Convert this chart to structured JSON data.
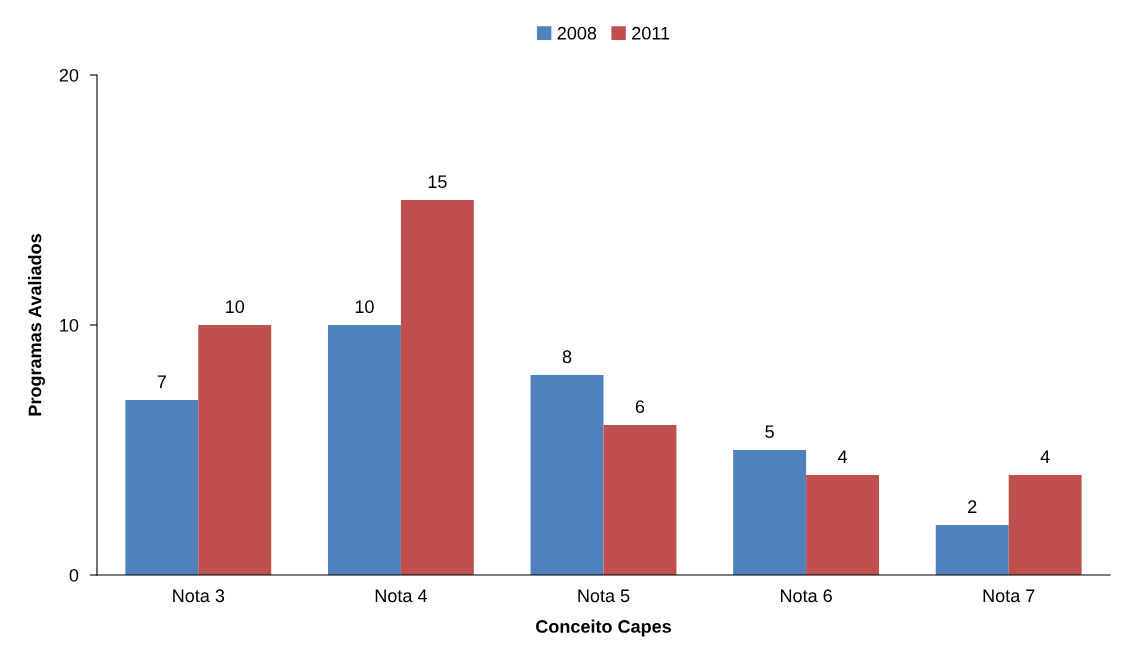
{
  "chart_data": {
    "type": "bar",
    "xlabel": "Conceito Capes",
    "ylabel": "Programas Avaliados",
    "categories": [
      "Nota 3",
      "Nota 4",
      "Nota 5",
      "Nota 6",
      "Nota 7"
    ],
    "series": [
      {
        "name": "2008",
        "color": "#4f81bd",
        "values": [
          7,
          10,
          8,
          5,
          2
        ]
      },
      {
        "name": "2011",
        "color": "#c0504d",
        "values": [
          10,
          15,
          6,
          4,
          4
        ]
      }
    ],
    "ylim": [
      0,
      20
    ],
    "yticks": [
      0,
      10,
      20
    ],
    "grid": false,
    "legend": "top",
    "data_labels": true
  }
}
